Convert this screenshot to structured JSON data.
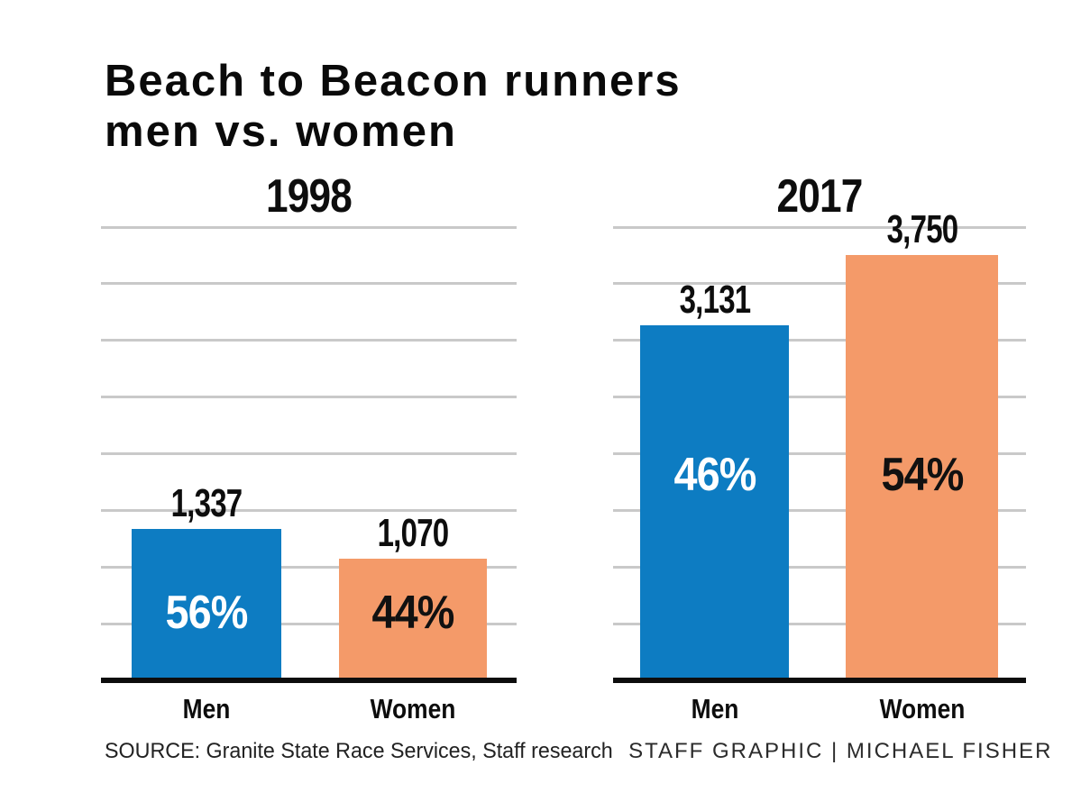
{
  "title": {
    "line1": "Beach to Beacon runners",
    "line2": "men vs. women"
  },
  "footer": {
    "source": "SOURCE: Granite State Race Services, Staff research",
    "credit": "STAFF GRAPHIC | MICHAEL FISHER"
  },
  "colors": {
    "men_bar": "#0d7cc2",
    "women_bar": "#f49a69",
    "gridline": "#c9c9c9",
    "axis": "#0d0d0d",
    "pct_on_men": "#ffffff",
    "pct_on_women": "#111111"
  },
  "chart_data": {
    "type": "bar",
    "title": "Beach to Beacon runners men vs. women",
    "categories": [
      "Men",
      "Women"
    ],
    "ylim": [
      0,
      4000
    ],
    "gridline_step": 500,
    "grid": true,
    "legend": "none",
    "panels": [
      {
        "title": "1998",
        "series": [
          {
            "name": "Men",
            "value": 1337,
            "label": "1,337",
            "pct": "56%"
          },
          {
            "name": "Women",
            "value": 1070,
            "label": "1,070",
            "pct": "44%"
          }
        ]
      },
      {
        "title": "2017",
        "series": [
          {
            "name": "Men",
            "value": 3131,
            "label": "3,131",
            "pct": "46%"
          },
          {
            "name": "Women",
            "value": 3750,
            "label": "3,750",
            "pct": "54%"
          }
        ]
      }
    ]
  }
}
